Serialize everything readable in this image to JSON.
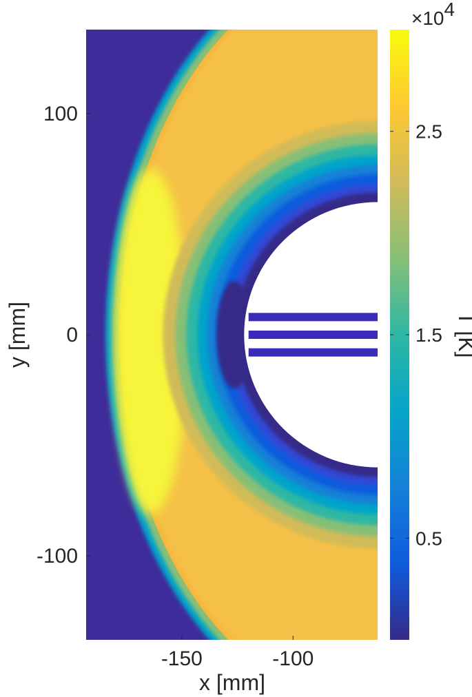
{
  "chart_data": {
    "type": "heatmap",
    "title": "",
    "xlabel": "x [mm]",
    "ylabel": "y [mm]",
    "xlim": [
      -193,
      -62
    ],
    "ylim": [
      -138,
      138
    ],
    "xticks": [
      {
        "value": -150,
        "label": "-150"
      },
      {
        "value": -100,
        "label": "-100"
      }
    ],
    "yticks": [
      {
        "value": 100,
        "label": "100"
      },
      {
        "value": 0,
        "label": "0"
      },
      {
        "value": -100,
        "label": "-100"
      }
    ],
    "grid": false,
    "colormap": "parula",
    "colormap_stops": [
      "#352a87",
      "#0f5cdd",
      "#1481d6",
      "#06a4ca",
      "#2eb7a4",
      "#87bf77",
      "#d1bb59",
      "#fec832",
      "#f9fb0e"
    ],
    "field_colors": {
      "freestream": "#3d2c9a",
      "shock_layer": "#f6b63e",
      "peak": "#f6f53a"
    },
    "colorbar": {
      "label": "T [K]",
      "multiplier": "×10",
      "exponent": "4",
      "range": [
        0,
        30000
      ],
      "ticks": [
        {
          "value": 25000,
          "label": "2.5"
        },
        {
          "value": 15000,
          "label": "1.5"
        },
        {
          "value": 5000,
          "label": "0.5"
        }
      ]
    },
    "geometry": {
      "body": {
        "shape": "circle",
        "center_x": -62,
        "center_y": 0,
        "radius": 60
      },
      "shock_standoff_x_at_y0": -183,
      "spikes": [
        {
          "y": 8,
          "x_start": -120
        },
        {
          "y": 0,
          "x_start": -120
        },
        {
          "y": -8,
          "x_start": -120
        }
      ]
    }
  }
}
